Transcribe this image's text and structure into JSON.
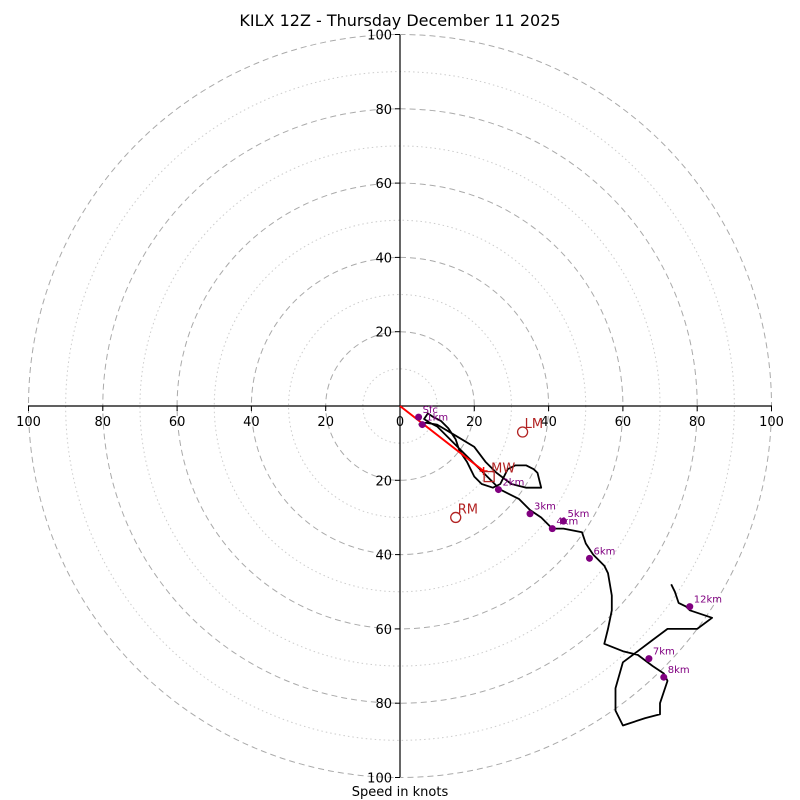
{
  "chart_data": {
    "type": "hodograph",
    "title": "KILX 12Z - Thursday December 11 2025",
    "xlabel": "Speed in knots",
    "xlim": [
      -100,
      100
    ],
    "ylim": [
      -100,
      100
    ],
    "ring_major": [
      20,
      40,
      60,
      80,
      100
    ],
    "ring_minor": [
      10,
      30,
      50,
      70,
      90
    ],
    "x_ticks": [
      {
        "value": -100,
        "label": "100"
      },
      {
        "value": -80,
        "label": "80"
      },
      {
        "value": -60,
        "label": "60"
      },
      {
        "value": -40,
        "label": "40"
      },
      {
        "value": -20,
        "label": "20"
      },
      {
        "value": 0,
        "label": "0"
      },
      {
        "value": 20,
        "label": "20"
      },
      {
        "value": 40,
        "label": "40"
      },
      {
        "value": 60,
        "label": "60"
      },
      {
        "value": 80,
        "label": "80"
      },
      {
        "value": 100,
        "label": "100"
      }
    ],
    "y_ticks": [
      {
        "value": 100,
        "label": "100"
      },
      {
        "value": 80,
        "label": "80"
      },
      {
        "value": 60,
        "label": "60"
      },
      {
        "value": 40,
        "label": "40"
      },
      {
        "value": 20,
        "label": "20"
      },
      {
        "value": -20,
        "label": "20"
      },
      {
        "value": -40,
        "label": "40"
      },
      {
        "value": -60,
        "label": "60"
      },
      {
        "value": -80,
        "label": "80"
      },
      {
        "value": -100,
        "label": "100"
      }
    ],
    "trace": [
      [
        5,
        -5
      ],
      [
        7,
        -4.5
      ],
      [
        10,
        -5
      ],
      [
        15,
        -8
      ],
      [
        20,
        -11
      ],
      [
        23,
        -15
      ],
      [
        26,
        -18
      ],
      [
        30,
        -21
      ],
      [
        34,
        -22
      ],
      [
        38,
        -22
      ],
      [
        37,
        -18
      ],
      [
        36,
        -17
      ],
      [
        34,
        -16
      ],
      [
        31,
        -16
      ],
      [
        29,
        -17
      ],
      [
        27,
        -21
      ],
      [
        25,
        -22
      ],
      [
        22,
        -21
      ],
      [
        20,
        -19
      ],
      [
        19,
        -17
      ],
      [
        18,
        -15
      ],
      [
        16,
        -12
      ],
      [
        15,
        -9
      ],
      [
        13,
        -6
      ],
      [
        11,
        -4
      ],
      [
        9,
        -3
      ],
      [
        7.5,
        -2
      ],
      [
        6.5,
        -3.5
      ],
      [
        8,
        -4.5
      ],
      [
        10,
        -5.5
      ],
      [
        27,
        -22.5
      ],
      [
        32,
        -25
      ],
      [
        35,
        -28
      ],
      [
        38,
        -30
      ],
      [
        41,
        -33
      ],
      [
        44,
        -33
      ],
      [
        49,
        -34
      ],
      [
        50,
        -37
      ],
      [
        52,
        -40
      ],
      [
        55,
        -43
      ],
      [
        56,
        -45
      ],
      [
        57,
        -51
      ],
      [
        57,
        -55
      ],
      [
        56,
        -60
      ],
      [
        55,
        -64
      ],
      [
        60,
        -66
      ],
      [
        64,
        -67
      ],
      [
        68,
        -70
      ],
      [
        71,
        -72
      ],
      [
        72,
        -74
      ],
      [
        70,
        -80
      ],
      [
        70,
        -83
      ],
      [
        66,
        -84
      ],
      [
        60,
        -86
      ],
      [
        58,
        -82
      ],
      [
        58,
        -76
      ],
      [
        60,
        -69
      ],
      [
        64,
        -66
      ],
      [
        68,
        -63
      ],
      [
        72,
        -60
      ],
      [
        80,
        -60
      ],
      [
        84,
        -57
      ],
      [
        78,
        -55
      ],
      [
        77,
        -54
      ],
      [
        75,
        -53
      ],
      [
        74,
        -50
      ],
      [
        73,
        -48
      ]
    ],
    "height_markers": [
      {
        "label": "Sfc",
        "u": 5,
        "v": -3
      },
      {
        "label": "1km",
        "u": 6,
        "v": -5
      },
      {
        "label": "2km",
        "u": 26.5,
        "v": -22.5
      },
      {
        "label": "3km",
        "u": 35,
        "v": -29
      },
      {
        "label": "4km",
        "u": 41,
        "v": -33
      },
      {
        "label": "5km",
        "u": 44,
        "v": -31
      },
      {
        "label": "6km",
        "u": 51,
        "v": -41
      },
      {
        "label": "7km",
        "u": 67,
        "v": -68
      },
      {
        "label": "8km",
        "u": 71,
        "v": -73
      },
      {
        "label": "12km",
        "u": 78,
        "v": -54
      }
    ],
    "motion_markers": [
      {
        "label": "LM",
        "u": 33,
        "v": -7,
        "shape": "circle"
      },
      {
        "label": "MW",
        "u": 24,
        "v": -19,
        "shape": "square"
      },
      {
        "label": "RM",
        "u": 15,
        "v": -30,
        "shape": "circle"
      }
    ],
    "shear_vector": {
      "from": [
        0,
        0
      ],
      "to": [
        22.5,
        -17.5
      ]
    },
    "colors": {
      "trace": "#000000",
      "height_marker": "#800080",
      "motion": "#b22222",
      "shear": "#ff0000",
      "ring": "#aaaaaa",
      "ring_minor": "#cccccc",
      "axis": "#000000"
    }
  }
}
